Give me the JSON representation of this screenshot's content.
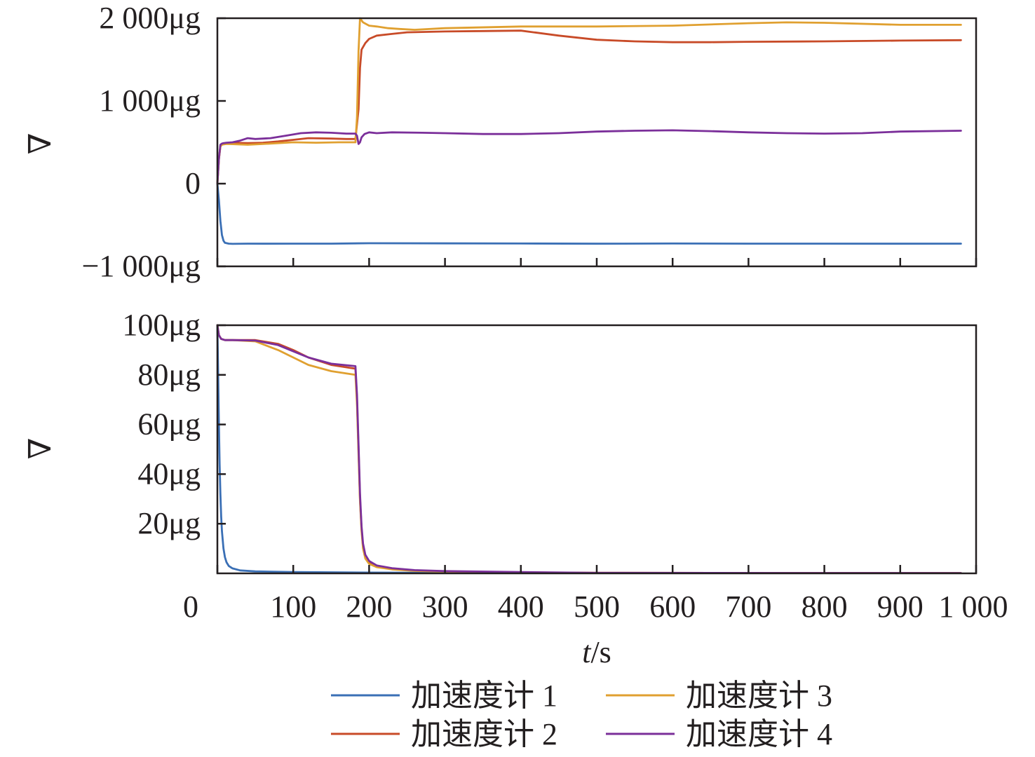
{
  "chart_data": [
    {
      "type": "line",
      "ylabel": "∇",
      "ylim": [
        -1000,
        2000
      ],
      "xlim": [
        0,
        1000
      ],
      "yticks": [
        {
          "value": -1000,
          "label": "−1 000μg"
        },
        {
          "value": 0,
          "label": "0"
        },
        {
          "value": 1000,
          "label": "1 000μg"
        },
        {
          "value": 2000,
          "label": "2 000μg"
        }
      ],
      "xticks": [
        0,
        100,
        200,
        300,
        400,
        500,
        600,
        700,
        800,
        900,
        1000
      ],
      "series": [
        {
          "name": "加速度计 1",
          "color": "#3a6fb5",
          "x": [
            0,
            2,
            4,
            6,
            8,
            10,
            15,
            20,
            40,
            60,
            100,
            150,
            200,
            300,
            400,
            500,
            600,
            700,
            800,
            900,
            980
          ],
          "y": [
            0,
            -200,
            -450,
            -620,
            -690,
            -715,
            -725,
            -728,
            -725,
            -726,
            -725,
            -725,
            -720,
            -722,
            -724,
            -726,
            -724,
            -725,
            -725,
            -726,
            -725
          ]
        },
        {
          "name": "加速度计 2",
          "color": "#c84b28",
          "x": [
            0,
            2,
            4,
            6,
            8,
            12,
            20,
            40,
            60,
            80,
            100,
            120,
            150,
            170,
            182,
            186,
            188,
            190,
            195,
            200,
            210,
            230,
            250,
            300,
            350,
            400,
            450,
            500,
            550,
            600,
            650,
            700,
            800,
            900,
            980
          ],
          "y": [
            0,
            300,
            450,
            480,
            485,
            490,
            495,
            490,
            495,
            510,
            530,
            550,
            545,
            540,
            540,
            900,
            1400,
            1620,
            1700,
            1750,
            1790,
            1810,
            1830,
            1840,
            1845,
            1850,
            1790,
            1740,
            1720,
            1710,
            1710,
            1715,
            1720,
            1730,
            1735
          ]
        },
        {
          "name": "加速度计 3",
          "color": "#e0a030",
          "x": [
            0,
            2,
            4,
            6,
            8,
            12,
            20,
            40,
            60,
            80,
            100,
            130,
            160,
            182,
            184,
            186,
            188,
            192,
            200,
            210,
            225,
            240,
            260,
            300,
            400,
            500,
            600,
            700,
            750,
            800,
            900,
            980
          ],
          "y": [
            0,
            300,
            450,
            470,
            475,
            480,
            478,
            470,
            480,
            490,
            500,
            495,
            500,
            500,
            800,
            1600,
            2000,
            1950,
            1910,
            1900,
            1880,
            1870,
            1860,
            1880,
            1900,
            1900,
            1910,
            1940,
            1950,
            1945,
            1920,
            1920
          ]
        },
        {
          "name": "加速度计 4",
          "color": "#7b2f9a",
          "x": [
            0,
            2,
            4,
            6,
            8,
            12,
            20,
            30,
            40,
            50,
            70,
            90,
            110,
            130,
            150,
            170,
            182,
            184,
            186,
            188,
            190,
            194,
            200,
            210,
            230,
            270,
            300,
            350,
            400,
            450,
            500,
            550,
            600,
            650,
            700,
            750,
            800,
            850,
            900,
            980
          ],
          "y": [
            0,
            300,
            470,
            485,
            490,
            495,
            500,
            520,
            550,
            540,
            550,
            580,
            610,
            620,
            615,
            605,
            605,
            580,
            480,
            500,
            560,
            600,
            620,
            610,
            620,
            615,
            610,
            600,
            600,
            610,
            630,
            640,
            645,
            635,
            620,
            610,
            605,
            610,
            630,
            640
          ]
        }
      ]
    },
    {
      "type": "line",
      "ylabel": "∇",
      "ylim": [
        0,
        100
      ],
      "xlim": [
        0,
        1000
      ],
      "yticks": [
        {
          "value": 20,
          "label": "20μg"
        },
        {
          "value": 40,
          "label": "40μg"
        },
        {
          "value": 60,
          "label": "60μg"
        },
        {
          "value": 80,
          "label": "80μg"
        },
        {
          "value": 100,
          "label": "100μg"
        }
      ],
      "xticks": [
        0,
        100,
        200,
        300,
        400,
        500,
        600,
        700,
        800,
        900,
        1000
      ],
      "xtick_labels": [
        "0",
        "100",
        "200",
        "300",
        "400",
        "500",
        "600",
        "700",
        "800",
        "900",
        "1 000"
      ],
      "xlabel_italic": "t",
      "xlabel_unit": "/s",
      "series": [
        {
          "name": "加速度计 1",
          "color": "#3a6fb5",
          "x": [
            0,
            1,
            2,
            3,
            4,
            5,
            6,
            8,
            10,
            12,
            15,
            20,
            30,
            50,
            100,
            200,
            300,
            980
          ],
          "y": [
            100,
            80,
            60,
            44,
            32,
            23,
            17,
            10,
            6.5,
            4.5,
            3,
            2,
            1.2,
            0.8,
            0.5,
            0.3,
            0.2,
            0.1
          ]
        },
        {
          "name": "加速度计 2",
          "color": "#c84b28",
          "x": [
            0,
            2,
            5,
            10,
            20,
            50,
            80,
            100,
            120,
            150,
            182,
            184,
            186,
            188,
            190,
            192,
            195,
            200,
            210,
            230,
            260,
            300,
            400,
            500,
            980
          ],
          "y": [
            100,
            96,
            94.5,
            94,
            94,
            94,
            92.5,
            90,
            87,
            84,
            82.5,
            70,
            50,
            30,
            18,
            11,
            7,
            4.5,
            3,
            2,
            1.2,
            0.8,
            0.4,
            0.2,
            0.1
          ]
        },
        {
          "name": "加速度计 3",
          "color": "#e0a030",
          "x": [
            0,
            2,
            5,
            10,
            20,
            50,
            80,
            100,
            120,
            150,
            182,
            184,
            186,
            188,
            190,
            192,
            195,
            200,
            210,
            230,
            260,
            300,
            400,
            500,
            980
          ],
          "y": [
            100,
            96,
            94.5,
            94,
            94,
            93.5,
            90,
            87,
            84,
            81.5,
            80,
            68,
            48,
            29,
            17,
            10,
            6,
            3.8,
            2.5,
            1.6,
            1,
            0.7,
            0.4,
            0.2,
            0.1
          ]
        },
        {
          "name": "加速度计 4",
          "color": "#7b2f9a",
          "x": [
            0,
            2,
            5,
            10,
            20,
            50,
            80,
            100,
            120,
            150,
            182,
            184,
            186,
            188,
            190,
            192,
            195,
            200,
            210,
            230,
            260,
            300,
            400,
            500,
            980
          ],
          "y": [
            100,
            96,
            94.5,
            94,
            94,
            93.8,
            92,
            89.5,
            87,
            84.5,
            83.5,
            72,
            52,
            32,
            19,
            12,
            7.5,
            5,
            3.2,
            2.1,
            1.3,
            0.9,
            0.5,
            0.2,
            0.1
          ]
        }
      ]
    }
  ],
  "legend": [
    {
      "label": "加速度计 1",
      "color": "#3a6fb5"
    },
    {
      "label": "加速度计 3",
      "color": "#e0a030"
    },
    {
      "label": "加速度计 2",
      "color": "#c84b28"
    },
    {
      "label": "加速度计 4",
      "color": "#7b2f9a"
    }
  ]
}
